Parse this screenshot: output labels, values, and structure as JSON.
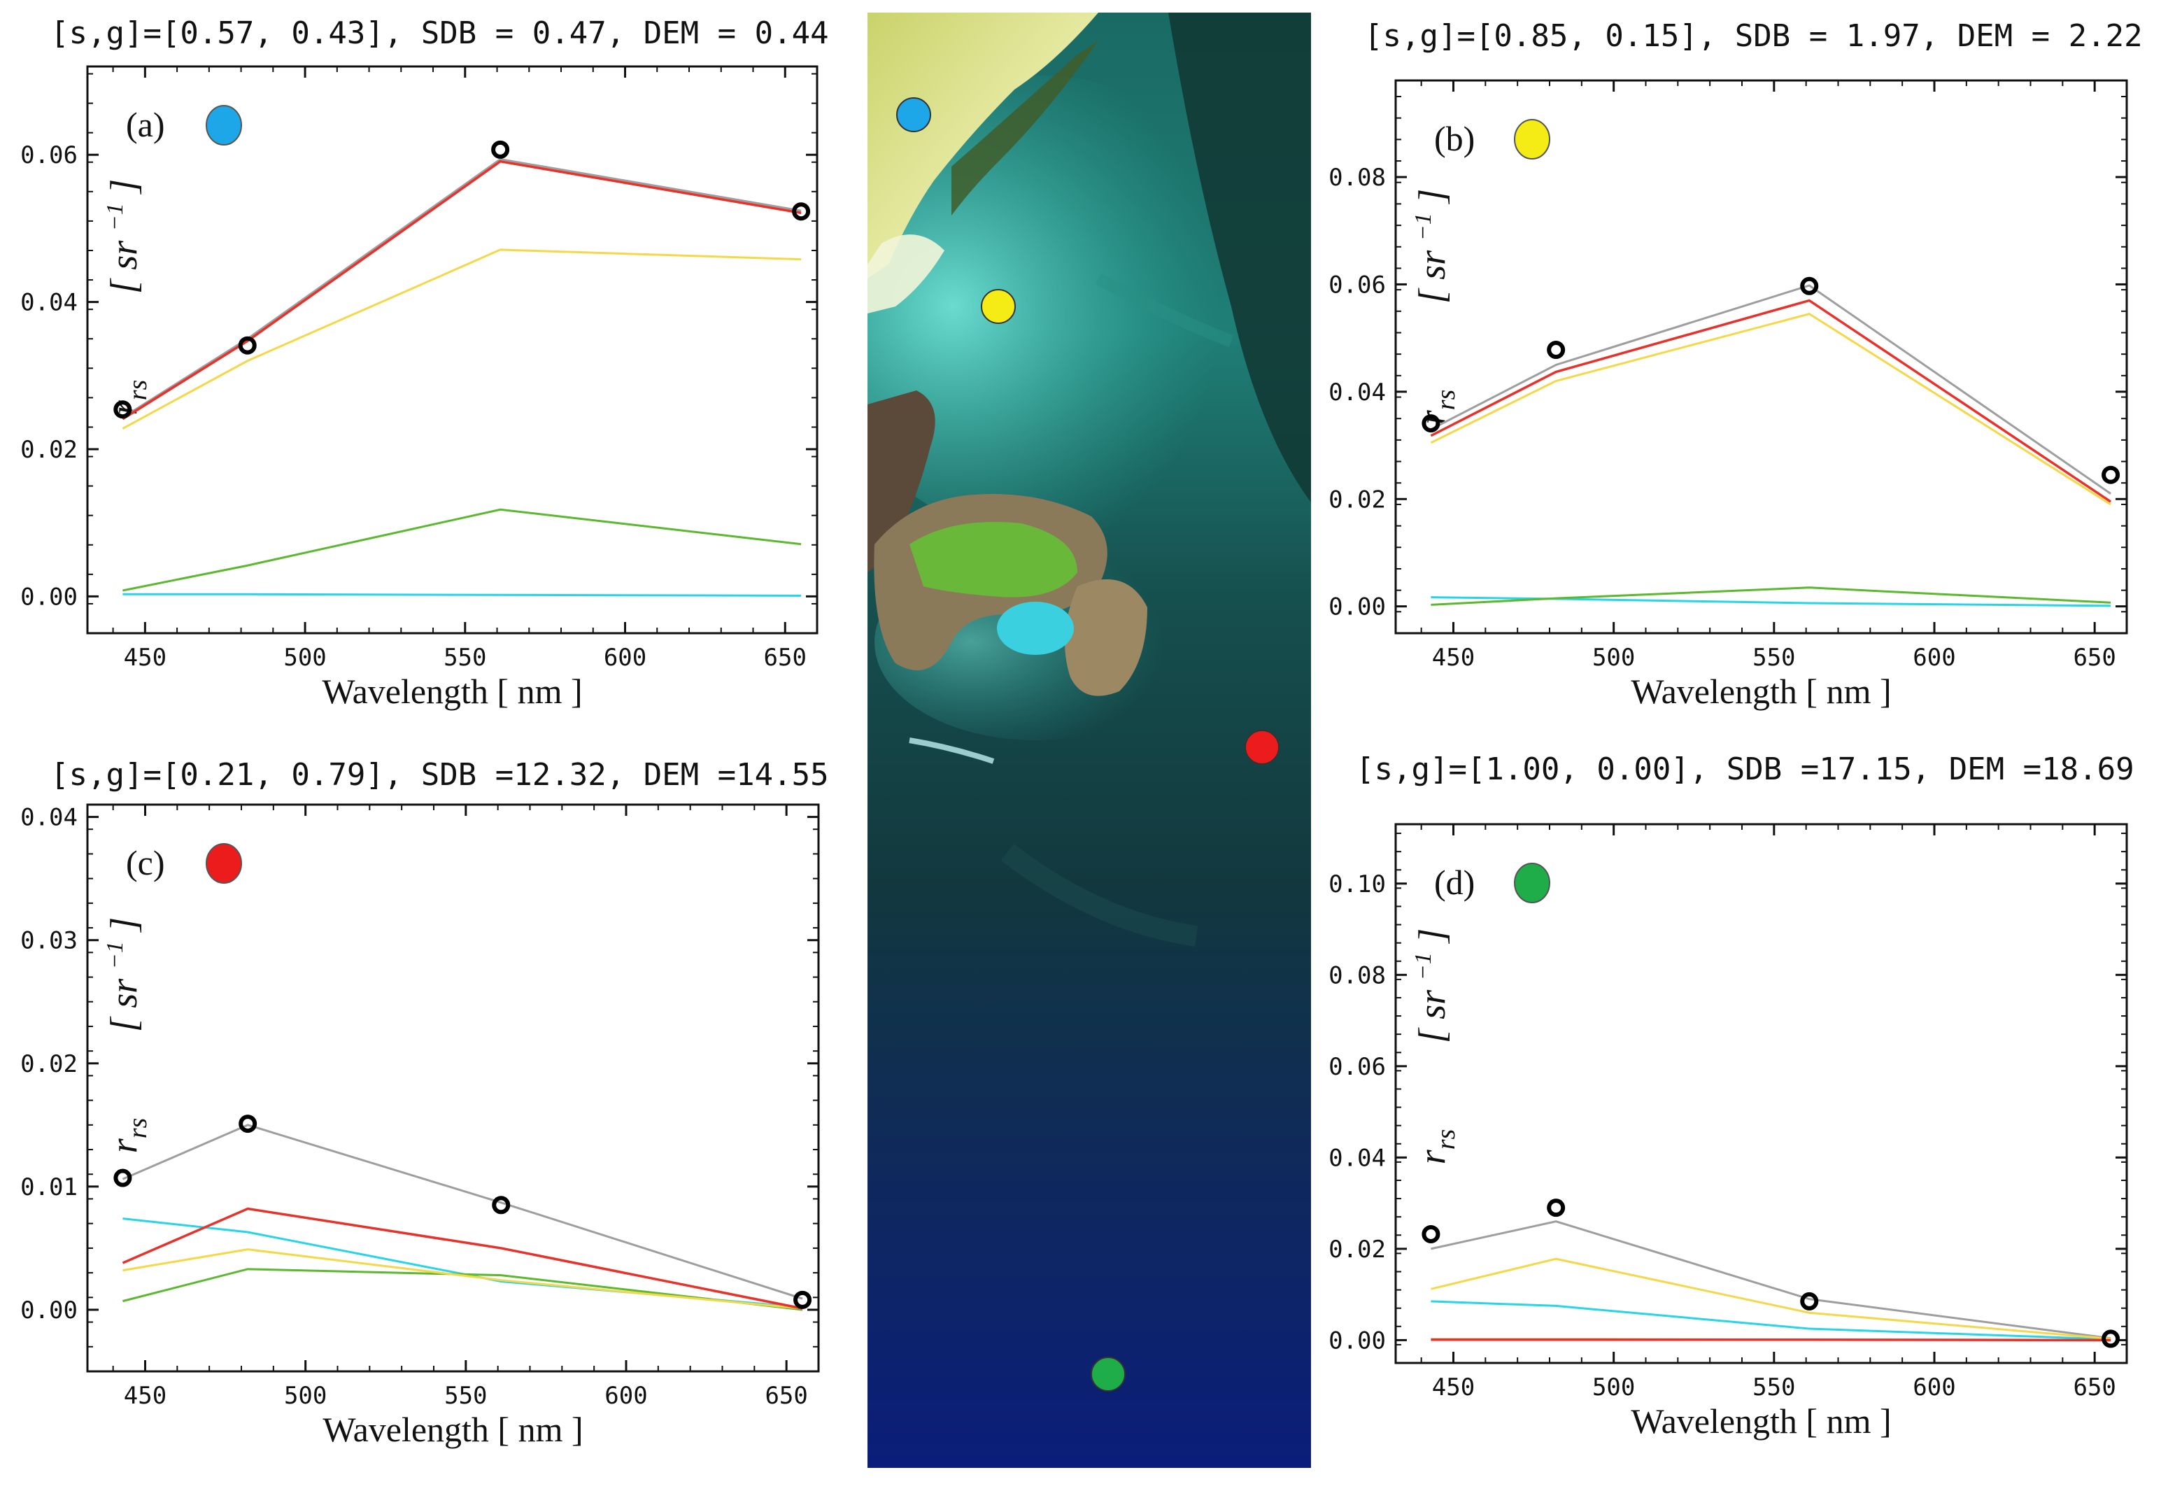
{
  "colors": {
    "observed": "#000000",
    "fit_total": "#9e9e9e",
    "bottom_s": "#e8312a",
    "water_column": "#f5d84a",
    "bottom_g": "#5cb82e",
    "deep_water": "#28d4e8",
    "marker_blue": "#1ea7e8",
    "marker_yellow": "#f4ec14",
    "marker_red": "#ec1c1c",
    "marker_green": "#1fad4a"
  },
  "image_markers": [
    {
      "name": "blue",
      "color": "#1ea7e8"
    },
    {
      "name": "yellow",
      "color": "#f4ec14"
    },
    {
      "name": "red",
      "color": "#ec1c1c"
    },
    {
      "name": "green",
      "color": "#1fad4a"
    }
  ],
  "chart_data": [
    {
      "type": "line",
      "panel": "(a)",
      "header": "[s,g]=[0.57, 0.43], SDB = 0.47, DEM = 0.44",
      "marker_color": "#1ea7e8",
      "xlabel": "Wavelength [ nm ]",
      "ylabel": "r_rs [sr^-1]",
      "ylabel_main": "r",
      "ylabel_sub": "rs",
      "ylabel_unit": "[ sr",
      "ylabel_exp": "−1",
      "ylabel_close": "]",
      "xlim": [
        432,
        660
      ],
      "ylim": [
        -0.005,
        0.072
      ],
      "xticks": [
        450,
        500,
        550,
        600,
        650
      ],
      "yticks": [
        0.0,
        0.02,
        0.04,
        0.06
      ],
      "ytick_labels": [
        "0.00",
        "0.02",
        "0.04",
        "0.06"
      ],
      "observed": {
        "x": [
          443,
          482,
          561,
          655
        ],
        "y": [
          0.0254,
          0.0341,
          0.0607,
          0.0523
        ]
      },
      "series": [
        {
          "key": "fit_total",
          "x": [
            443,
            482,
            561,
            655
          ],
          "y": [
            0.0243,
            0.035,
            0.0594,
            0.0524
          ]
        },
        {
          "key": "bottom_s",
          "x": [
            443,
            482,
            561,
            655
          ],
          "y": [
            0.0241,
            0.0347,
            0.0591,
            0.0521
          ]
        },
        {
          "key": "water_column",
          "x": [
            443,
            482,
            561,
            655
          ],
          "y": [
            0.0228,
            0.032,
            0.0471,
            0.0458
          ]
        },
        {
          "key": "bottom_g",
          "x": [
            443,
            482,
            561,
            655
          ],
          "y": [
            0.0008,
            0.0042,
            0.0118,
            0.0071
          ]
        },
        {
          "key": "deep_water",
          "x": [
            443,
            482,
            561,
            655
          ],
          "y": [
            0.0003,
            0.0003,
            0.0002,
            0.0001
          ]
        }
      ]
    },
    {
      "type": "line",
      "panel": "(b)",
      "header": "[s,g]=[0.85, 0.15], SDB = 1.97, DEM = 2.22",
      "marker_color": "#f4ec14",
      "xlabel": "Wavelength [ nm ]",
      "ylabel": "r_rs [sr^-1]",
      "ylabel_main": "r",
      "ylabel_sub": "rs",
      "ylabel_unit": "[ sr",
      "ylabel_exp": "−1",
      "ylabel_close": "]",
      "xlim": [
        432,
        660
      ],
      "ylim": [
        -0.005,
        0.098
      ],
      "xticks": [
        450,
        500,
        550,
        600,
        650
      ],
      "yticks": [
        0.0,
        0.02,
        0.04,
        0.06,
        0.08
      ],
      "ytick_labels": [
        "0.00",
        "0.02",
        "0.04",
        "0.06",
        "0.08"
      ],
      "observed": {
        "x": [
          443,
          482,
          561,
          655
        ],
        "y": [
          0.0341,
          0.0478,
          0.0597,
          0.0245
        ]
      },
      "series": [
        {
          "key": "fit_total",
          "x": [
            443,
            482,
            561,
            655
          ],
          "y": [
            0.033,
            0.045,
            0.0598,
            0.021
          ]
        },
        {
          "key": "bottom_s",
          "x": [
            443,
            482,
            561,
            655
          ],
          "y": [
            0.0318,
            0.0437,
            0.057,
            0.0195
          ]
        },
        {
          "key": "water_column",
          "x": [
            443,
            482,
            561,
            655
          ],
          "y": [
            0.0305,
            0.042,
            0.0545,
            0.019
          ]
        },
        {
          "key": "bottom_g",
          "x": [
            443,
            482,
            561,
            655
          ],
          "y": [
            0.0003,
            0.0015,
            0.0035,
            0.0007
          ]
        },
        {
          "key": "deep_water",
          "x": [
            443,
            482,
            561,
            655
          ],
          "y": [
            0.0017,
            0.0014,
            0.0006,
            0.0001
          ]
        }
      ]
    },
    {
      "type": "line",
      "panel": "(c)",
      "header": "[s,g]=[0.21, 0.79], SDB =12.32, DEM =14.55",
      "marker_color": "#ec1c1c",
      "xlabel": "Wavelength [ nm ]",
      "ylabel": "r_rs [sr^-1]",
      "ylabel_main": "r",
      "ylabel_sub": "rs",
      "ylabel_unit": "[ sr",
      "ylabel_exp": "−1",
      "ylabel_close": "]",
      "xlim": [
        432,
        660
      ],
      "ylim": [
        -0.005,
        0.041
      ],
      "xticks": [
        450,
        500,
        550,
        600,
        650
      ],
      "yticks": [
        0.0,
        0.01,
        0.02,
        0.03,
        0.04
      ],
      "ytick_labels": [
        "0.00",
        "0.01",
        "0.02",
        "0.03",
        "0.04"
      ],
      "observed": {
        "x": [
          443,
          482,
          561,
          655
        ],
        "y": [
          0.0107,
          0.0151,
          0.0085,
          0.0008
        ]
      },
      "series": [
        {
          "key": "fit_total",
          "x": [
            443,
            482,
            561,
            655
          ],
          "y": [
            0.0106,
            0.015,
            0.0087,
            0.0009
          ]
        },
        {
          "key": "bottom_s",
          "x": [
            443,
            482,
            561,
            655
          ],
          "y": [
            0.0038,
            0.0082,
            0.005,
            0.0001
          ]
        },
        {
          "key": "water_column",
          "x": [
            443,
            482,
            561,
            655
          ],
          "y": [
            0.0032,
            0.0049,
            0.0024,
            0.0001
          ]
        },
        {
          "key": "bottom_g",
          "x": [
            443,
            482,
            561,
            655
          ],
          "y": [
            0.0007,
            0.0033,
            0.0028,
            0.0
          ]
        },
        {
          "key": "deep_water",
          "x": [
            443,
            482,
            561,
            655
          ],
          "y": [
            0.0074,
            0.0063,
            0.0023,
            0.0002
          ]
        }
      ]
    },
    {
      "type": "line",
      "panel": "(d)",
      "header": "[s,g]=[1.00, 0.00], SDB =17.15, DEM =18.69",
      "marker_color": "#1fad4a",
      "xlabel": "Wavelength [ nm ]",
      "ylabel": "r_rs [sr^-1]",
      "ylabel_main": "r",
      "ylabel_sub": "rs",
      "ylabel_unit": "[ sr",
      "ylabel_exp": "−1",
      "ylabel_close": "]",
      "xlim": [
        432,
        660
      ],
      "ylim": [
        -0.005,
        0.113
      ],
      "xticks": [
        450,
        500,
        550,
        600,
        650
      ],
      "yticks": [
        0.0,
        0.02,
        0.04,
        0.06,
        0.08,
        0.1
      ],
      "ytick_labels": [
        "0.00",
        "0.02",
        "0.04",
        "0.06",
        "0.08",
        "0.10"
      ],
      "observed": {
        "x": [
          443,
          482,
          561,
          655
        ],
        "y": [
          0.0232,
          0.029,
          0.0085,
          0.0003
        ]
      },
      "series": [
        {
          "key": "fit_total",
          "x": [
            443,
            482,
            561,
            655
          ],
          "y": [
            0.02,
            0.026,
            0.009,
            0.0004
          ]
        },
        {
          "key": "water_column",
          "x": [
            443,
            482,
            561,
            655
          ],
          "y": [
            0.0112,
            0.0178,
            0.006,
            0.0003
          ]
        },
        {
          "key": "deep_water",
          "x": [
            443,
            482,
            561,
            655
          ],
          "y": [
            0.0085,
            0.0075,
            0.0025,
            0.0002
          ]
        },
        {
          "key": "bottom_g",
          "x": [
            443,
            482,
            561,
            655
          ],
          "y": [
            0.0002,
            0.0002,
            0.0001,
            0.0
          ]
        },
        {
          "key": "bottom_s",
          "x": [
            443,
            482,
            561,
            655
          ],
          "y": [
            0.0001,
            0.0001,
            0.0001,
            0.0
          ]
        }
      ]
    }
  ]
}
